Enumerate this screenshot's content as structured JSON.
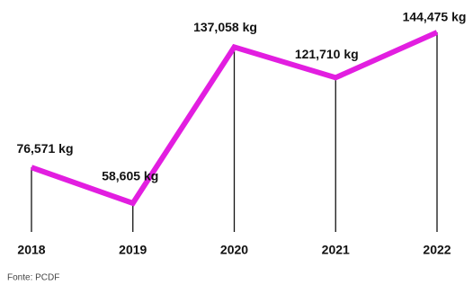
{
  "chart_data": {
    "type": "line",
    "categories": [
      "2018",
      "2019",
      "2020",
      "2021",
      "2022"
    ],
    "series": [
      {
        "color": "#e21ee0",
        "values": [
          76571,
          58605,
          137058,
          121710,
          144475
        ],
        "value_labels": [
          "76,571 kg",
          "58,605 kg",
          "137,058 kg",
          "121,710 kg",
          "144,475 kg"
        ]
      }
    ],
    "source": "Fonte: PCDF"
  }
}
